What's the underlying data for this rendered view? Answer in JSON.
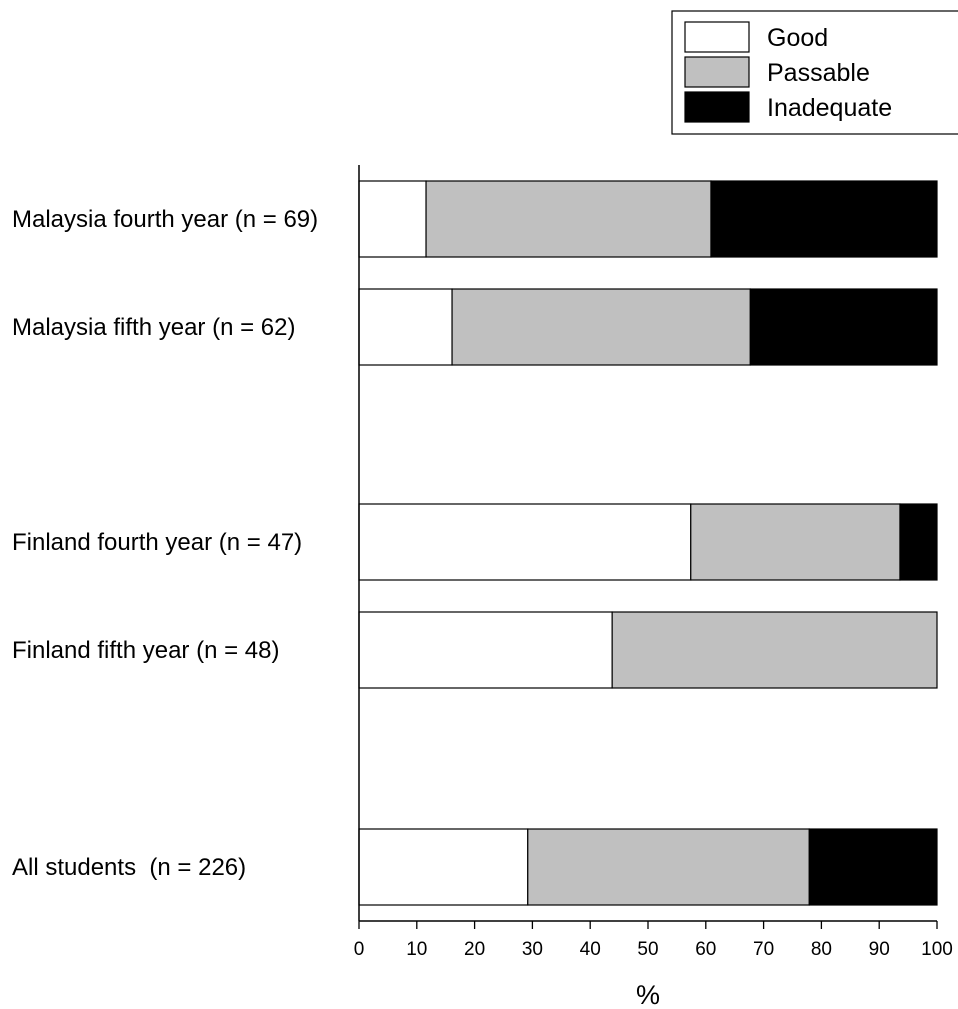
{
  "chart_data": {
    "type": "bar",
    "orientation": "horizontal",
    "stacked": true,
    "categories": [
      "Malaysia fourth year (n = 69)",
      "Malaysia fifth year (n = 62)",
      "Finland fourth year (n = 47)",
      "Finland fifth year (n = 48)",
      "All students  (n = 226)"
    ],
    "series": [
      {
        "name": "Good",
        "color": "#ffffff",
        "values": [
          11.6,
          16.1,
          57.4,
          43.8,
          29.2
        ]
      },
      {
        "name": "Passable",
        "color": "#c0c0c0",
        "values": [
          49.3,
          51.6,
          36.2,
          56.2,
          48.7
        ]
      },
      {
        "name": "Inadequate",
        "color": "#000000",
        "values": [
          39.1,
          32.3,
          6.4,
          0.0,
          22.1
        ]
      }
    ],
    "xlabel": "%",
    "xlim": [
      0,
      100
    ],
    "xticks": [
      "0",
      "10",
      "20",
      "30",
      "40",
      "50",
      "60",
      "70",
      "80",
      "90",
      "100"
    ],
    "grid": false,
    "legend_position": "top-right"
  }
}
